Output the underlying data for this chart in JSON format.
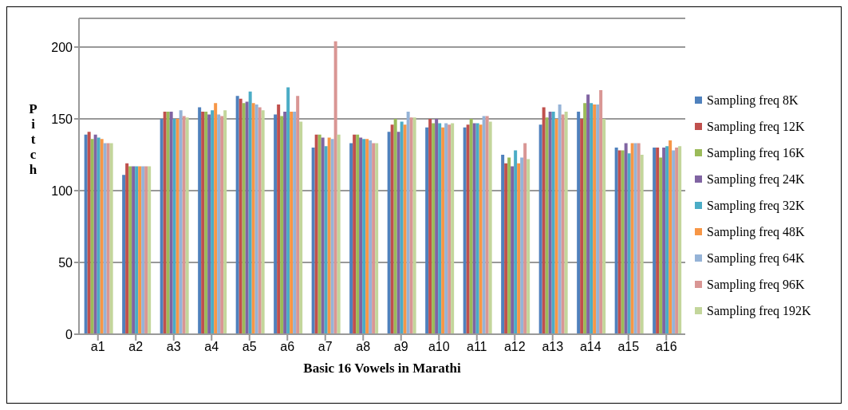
{
  "chart_data": {
    "type": "bar",
    "xlabel": "Basic 16 Vowels in Marathi",
    "ylabel": "Pitch",
    "categories": [
      "a1",
      "a2",
      "a3",
      "a4",
      "a5",
      "a6",
      "a7",
      "a8",
      "a9",
      "a10",
      "a11",
      "a12",
      "a13",
      "a14",
      "a15",
      "a16"
    ],
    "series": [
      {
        "name": "Sampling freq 8K",
        "color": "#4f81bd",
        "values": [
          139,
          111,
          150,
          158,
          166,
          153,
          130,
          133,
          141,
          144,
          144,
          125,
          146,
          155,
          130,
          130
        ]
      },
      {
        "name": "Sampling freq 12K",
        "color": "#c0504d",
        "values": [
          141,
          119,
          155,
          155,
          164,
          160,
          139,
          139,
          146,
          150,
          146,
          119,
          158,
          150,
          128,
          130
        ]
      },
      {
        "name": "Sampling freq 16K",
        "color": "#9bbb59",
        "values": [
          136,
          117,
          155,
          155,
          161,
          152,
          139,
          139,
          150,
          147,
          150,
          123,
          151,
          161,
          128,
          123
        ]
      },
      {
        "name": "Sampling freq 24K",
        "color": "#8064a2",
        "values": [
          139,
          117,
          155,
          153,
          162,
          155,
          137,
          137,
          141,
          150,
          147,
          117,
          155,
          167,
          133,
          130
        ]
      },
      {
        "name": "Sampling freq 32K",
        "color": "#4bacc6",
        "values": [
          137,
          117,
          150,
          156,
          169,
          172,
          131,
          136,
          148,
          147,
          147,
          128,
          155,
          161,
          126,
          131
        ]
      },
      {
        "name": "Sampling freq 48K",
        "color": "#f79646",
        "values": [
          136,
          117,
          150,
          161,
          161,
          155,
          137,
          136,
          146,
          144,
          146,
          119,
          150,
          160,
          133,
          135
        ]
      },
      {
        "name": "Sampling freq 64K",
        "color": "#95b3d7",
        "values": [
          133,
          117,
          156,
          153,
          160,
          155,
          136,
          135,
          155,
          147,
          152,
          123,
          160,
          160,
          133,
          128
        ]
      },
      {
        "name": "Sampling freq 96K",
        "color": "#d99694",
        "values": [
          133,
          117,
          152,
          152,
          158,
          166,
          204,
          133,
          151,
          146,
          152,
          133,
          153,
          170,
          133,
          130
        ]
      },
      {
        "name": "Sampling freq 192K",
        "color": "#c3d69b",
        "values": [
          133,
          117,
          151,
          156,
          156,
          148,
          139,
          133,
          151,
          147,
          148,
          122,
          155,
          150,
          125,
          131
        ]
      }
    ],
    "ylim": [
      0,
      220
    ],
    "yticks": [
      0,
      50,
      100,
      150,
      200
    ],
    "grid": "y",
    "legend": "right"
  }
}
